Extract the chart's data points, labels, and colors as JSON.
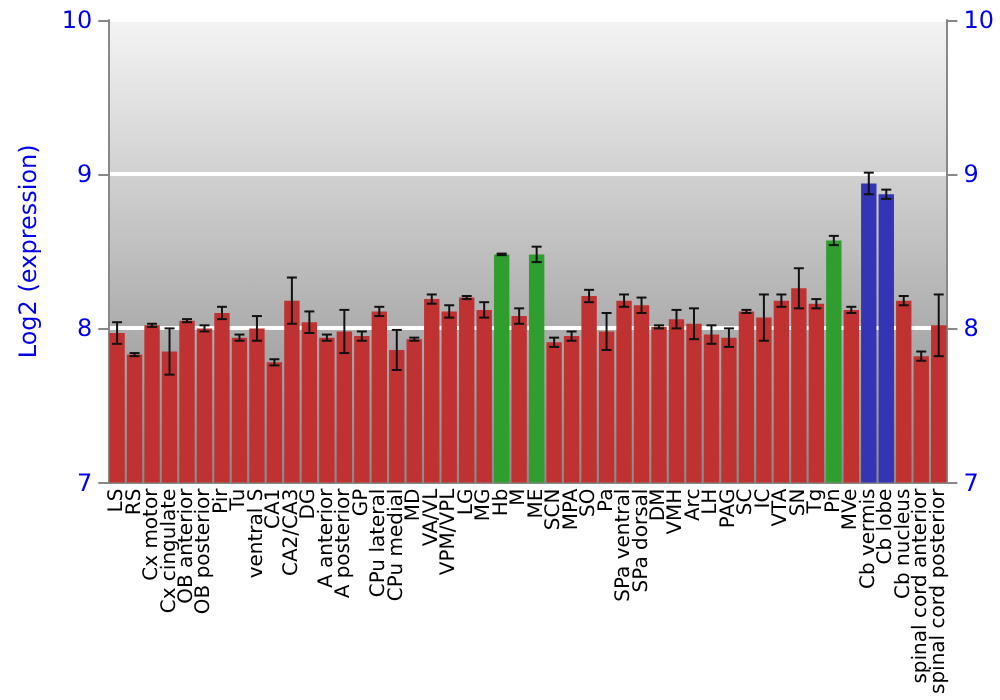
{
  "chart_data": {
    "type": "bar",
    "ylabel": "Log2 (expression)",
    "categories": [
      "LS",
      "RS",
      "Cx motor",
      "Cx cingulate",
      "OB anterior",
      "OB posterior",
      "Pir",
      "Tu",
      "ventral S",
      "CA1",
      "CA2/CA3",
      "DG",
      "A anterior",
      "A posterior",
      "GP",
      "CPu lateral",
      "CPu medial",
      "MD",
      "VA/VL",
      "VPM/VPL",
      "LG",
      "MG",
      "Hb",
      "M",
      "ME",
      "SCN",
      "MPA",
      "SO",
      "Pa",
      "SPa ventral",
      "SPa dorsal",
      "DM",
      "VMH",
      "Arc",
      "LH",
      "PAG",
      "SC",
      "IC",
      "VTA",
      "SN",
      "Tg",
      "Pn",
      "MVe",
      "Cb vermis",
      "Cb lobe",
      "Cb nucleus",
      "spinal cord anterior",
      "spinal cord posterior"
    ],
    "values": [
      7.97,
      7.83,
      8.02,
      7.85,
      8.05,
      8.0,
      8.1,
      7.94,
      8.0,
      7.78,
      8.18,
      8.04,
      7.94,
      7.98,
      7.95,
      8.11,
      7.86,
      7.93,
      8.19,
      8.11,
      8.2,
      8.12,
      8.48,
      8.08,
      8.48,
      7.91,
      7.95,
      8.21,
      7.98,
      8.18,
      8.15,
      8.01,
      8.06,
      8.03,
      7.96,
      7.94,
      8.11,
      8.07,
      8.18,
      8.26,
      8.16,
      8.57,
      8.12,
      8.94,
      8.87,
      8.18,
      7.82,
      8.02
    ],
    "errors": [
      0.07,
      0.01,
      0.01,
      0.15,
      0.01,
      0.02,
      0.04,
      0.02,
      0.08,
      0.02,
      0.15,
      0.07,
      0.02,
      0.14,
      0.03,
      0.03,
      0.13,
      0.01,
      0.03,
      0.04,
      0.01,
      0.05,
      0.005,
      0.05,
      0.05,
      0.03,
      0.03,
      0.04,
      0.12,
      0.04,
      0.05,
      0.01,
      0.06,
      0.1,
      0.06,
      0.06,
      0.01,
      0.15,
      0.04,
      0.13,
      0.03,
      0.03,
      0.02,
      0.07,
      0.03,
      0.03,
      0.03,
      0.2
    ],
    "colors": [
      "#c03232",
      "#c03232",
      "#c03232",
      "#c03232",
      "#c03232",
      "#c03232",
      "#c03232",
      "#c03232",
      "#c03232",
      "#c03232",
      "#c03232",
      "#c03232",
      "#c03232",
      "#c03232",
      "#c03232",
      "#c03232",
      "#c03232",
      "#c03232",
      "#c03232",
      "#c03232",
      "#c03232",
      "#c03232",
      "#2f9e2f",
      "#c03232",
      "#2f9e2f",
      "#c03232",
      "#c03232",
      "#c03232",
      "#c03232",
      "#c03232",
      "#c03232",
      "#c03232",
      "#c03232",
      "#c03232",
      "#c03232",
      "#c03232",
      "#c03232",
      "#c03232",
      "#c03232",
      "#c03232",
      "#c03232",
      "#2f9e2f",
      "#c03232",
      "#3434b4",
      "#3434b4",
      "#c03232",
      "#c03232",
      "#c03232"
    ],
    "ylim": [
      7,
      10
    ],
    "yticks": [
      7,
      8,
      9,
      10
    ],
    "y2lim": [
      7,
      10
    ],
    "y2ticks": [
      7,
      8,
      9,
      10
    ],
    "grid": "y"
  }
}
